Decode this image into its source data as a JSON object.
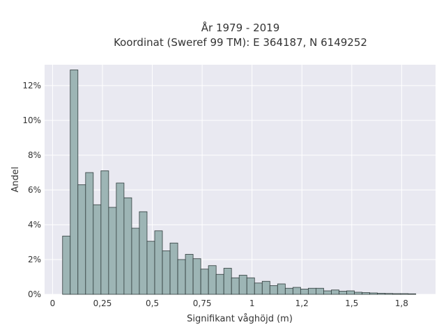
{
  "chart_data": {
    "type": "bar",
    "title_line1": "År 1979 - 2019",
    "title_line2": "Koordinat (Sweref 99 TM): E 364187, N 6149252",
    "xlabel": "Signifikant våghöjd (m)",
    "ylabel": "Andel",
    "xlim": [
      -0.04,
      1.92
    ],
    "ylim": [
      0,
      13.2
    ],
    "x_ticks": [
      0,
      0.25,
      0.5,
      0.75,
      1,
      1.25,
      1.5,
      1.75
    ],
    "x_tick_labels": [
      "0",
      "0,25",
      "0,5",
      "0,75",
      "1",
      "1,2",
      "1,5",
      "1,8"
    ],
    "y_ticks": [
      0,
      2,
      4,
      6,
      8,
      10,
      12
    ],
    "y_tick_labels": [
      "0%",
      "2%",
      "4%",
      "6%",
      "8%",
      "10%",
      "12%"
    ],
    "grid": true,
    "background": "#e9e9f1",
    "bar_color": "#9db5b5",
    "bin_width": 0.0385,
    "bins_start": [
      0.05,
      0.0885,
      0.127,
      0.1655,
      0.204,
      0.2425,
      0.281,
      0.3195,
      0.358,
      0.3965,
      0.435,
      0.4735,
      0.512,
      0.5505,
      0.589,
      0.6275,
      0.666,
      0.7045,
      0.743,
      0.7815,
      0.82,
      0.8585,
      0.897,
      0.9355,
      0.974,
      1.0125,
      1.051,
      1.0895,
      1.128,
      1.1665,
      1.205,
      1.2435,
      1.282,
      1.3205,
      1.359,
      1.3975,
      1.436,
      1.4745,
      1.513,
      1.5515,
      1.59,
      1.6285,
      1.667,
      1.7055,
      1.744,
      1.7825
    ],
    "values": [
      3.35,
      12.9,
      6.3,
      7.0,
      5.15,
      7.1,
      5.0,
      6.4,
      5.55,
      3.8,
      4.75,
      3.05,
      3.65,
      2.5,
      2.95,
      2.0,
      2.3,
      2.05,
      1.45,
      1.65,
      1.15,
      1.5,
      0.95,
      1.1,
      0.95,
      0.65,
      0.75,
      0.5,
      0.6,
      0.35,
      0.4,
      0.3,
      0.35,
      0.35,
      0.2,
      0.25,
      0.18,
      0.2,
      0.12,
      0.1,
      0.08,
      0.06,
      0.05,
      0.04,
      0.04,
      0.03
    ]
  }
}
